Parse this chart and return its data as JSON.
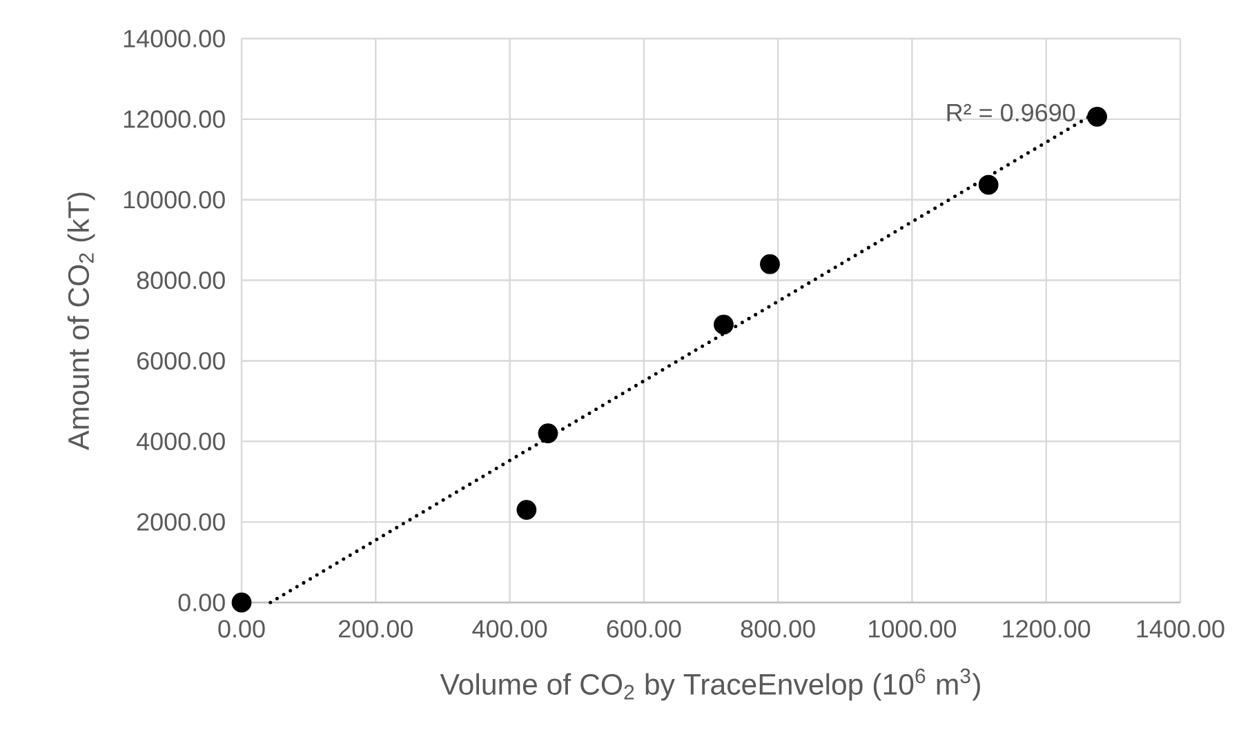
{
  "chart_data": {
    "type": "scatter",
    "xlabel": "Volume of CO$_{2}$ by TraceEnvelop (10$^{6}$ m$^{3}$)",
    "ylabel": "Amount of CO$_{2}$ (kT)",
    "xlim": [
      0,
      1400
    ],
    "ylim": [
      0,
      14000
    ],
    "xticks": [
      {
        "value": 0,
        "label": "0.00"
      },
      {
        "value": 200,
        "label": "200.00"
      },
      {
        "value": 400,
        "label": "400.00"
      },
      {
        "value": 600,
        "label": "600.00"
      },
      {
        "value": 800,
        "label": "800.00"
      },
      {
        "value": 1000,
        "label": "1000.00"
      },
      {
        "value": 1200,
        "label": "1200.00"
      },
      {
        "value": 1400,
        "label": "1400.00"
      }
    ],
    "yticks": [
      {
        "value": 0,
        "label": "0.00"
      },
      {
        "value": 2000,
        "label": "2000.00"
      },
      {
        "value": 4000,
        "label": "4000.00"
      },
      {
        "value": 6000,
        "label": "6000.00"
      },
      {
        "value": 8000,
        "label": "8000.00"
      },
      {
        "value": 10000,
        "label": "10000.00"
      },
      {
        "value": 12000,
        "label": "12000.00"
      },
      {
        "value": 14000,
        "label": "14000.00"
      }
    ],
    "grid": true,
    "series": [
      {
        "color": "#000000",
        "marker": "circle",
        "x": [
          0,
          425,
          457,
          719,
          788,
          1114,
          1276
        ],
        "values": [
          0,
          2300,
          4200,
          6900,
          8400,
          10370,
          12060
        ]
      },
      {
        "type": "line",
        "color": "#000000",
        "line_style": "dotted",
        "marker": "none",
        "x": [
          43,
          1265
        ],
        "values": [
          0,
          12070
        ]
      }
    ],
    "annotations": [
      {
        "text": "R² = 0.9690",
        "x": 1265,
        "y": 12070
      }
    ]
  }
}
